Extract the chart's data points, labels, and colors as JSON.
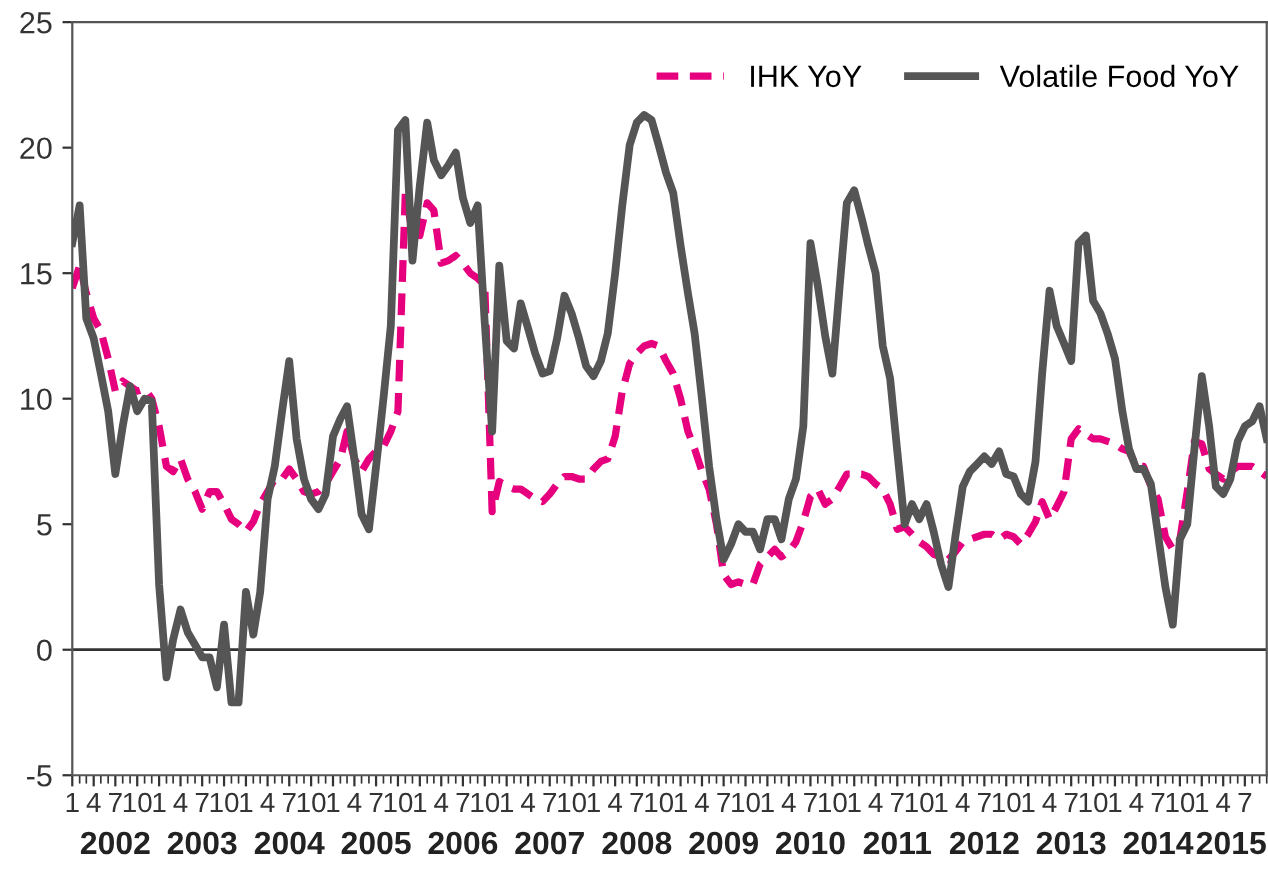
{
  "chart_data": {
    "type": "line",
    "x": [
      "2002-01",
      "2002-02",
      "2002-03",
      "2002-04",
      "2002-05",
      "2002-06",
      "2002-07",
      "2002-08",
      "2002-09",
      "2002-10",
      "2002-11",
      "2002-12",
      "2003-01",
      "2003-02",
      "2003-03",
      "2003-04",
      "2003-05",
      "2003-06",
      "2003-07",
      "2003-08",
      "2003-09",
      "2003-10",
      "2003-11",
      "2003-12",
      "2004-01",
      "2004-02",
      "2004-03",
      "2004-04",
      "2004-05",
      "2004-06",
      "2004-07",
      "2004-08",
      "2004-09",
      "2004-10",
      "2004-11",
      "2004-12",
      "2005-01",
      "2005-02",
      "2005-03",
      "2005-04",
      "2005-05",
      "2005-06",
      "2005-07",
      "2005-08",
      "2005-09",
      "2005-10",
      "2005-11",
      "2005-12",
      "2006-01",
      "2006-02",
      "2006-03",
      "2006-04",
      "2006-05",
      "2006-06",
      "2006-07",
      "2006-08",
      "2006-09",
      "2006-10",
      "2006-11",
      "2006-12",
      "2007-01",
      "2007-02",
      "2007-03",
      "2007-04",
      "2007-05",
      "2007-06",
      "2007-07",
      "2007-08",
      "2007-09",
      "2007-10",
      "2007-11",
      "2007-12",
      "2008-01",
      "2008-02",
      "2008-03",
      "2008-04",
      "2008-05",
      "2008-06",
      "2008-07",
      "2008-08",
      "2008-09",
      "2008-10",
      "2008-11",
      "2008-12",
      "2009-01",
      "2009-02",
      "2009-03",
      "2009-04",
      "2009-05",
      "2009-06",
      "2009-07",
      "2009-08",
      "2009-09",
      "2009-10",
      "2009-11",
      "2009-12",
      "2010-01",
      "2010-02",
      "2010-03",
      "2010-04",
      "2010-05",
      "2010-06",
      "2010-07",
      "2010-08",
      "2010-09",
      "2010-10",
      "2010-11",
      "2010-12",
      "2011-01",
      "2011-02",
      "2011-03",
      "2011-04",
      "2011-05",
      "2011-06",
      "2011-07",
      "2011-08",
      "2011-09",
      "2011-10",
      "2011-11",
      "2011-12",
      "2012-01",
      "2012-02",
      "2012-03",
      "2012-04",
      "2012-05",
      "2012-06",
      "2012-07",
      "2012-08",
      "2012-09",
      "2012-10",
      "2012-11",
      "2012-12",
      "2013-01",
      "2013-02",
      "2013-03",
      "2013-04",
      "2013-05",
      "2013-06",
      "2013-07",
      "2013-08",
      "2013-09",
      "2013-10",
      "2013-11",
      "2013-12",
      "2014-01",
      "2014-02",
      "2014-03",
      "2014-04",
      "2014-05",
      "2014-06",
      "2014-07",
      "2014-08",
      "2014-09",
      "2014-10",
      "2014-11",
      "2014-12",
      "2015-01",
      "2015-02",
      "2015-03",
      "2015-04",
      "2015-05",
      "2015-06",
      "2015-07",
      "2015-08",
      "2015-09",
      "2015-10"
    ],
    "series": [
      {
        "name": "IHK YoY",
        "color": "#e6007e",
        "line_style": "dashed",
        "values": [
          14.4,
          15.3,
          14.2,
          13.2,
          12.7,
          11.6,
          10.3,
          10.7,
          10.5,
          10.3,
          10.4,
          10.0,
          8.9,
          7.3,
          7.1,
          7.6,
          6.8,
          6.3,
          5.6,
          6.3,
          6.3,
          5.8,
          5.2,
          5.0,
          4.7,
          5.1,
          5.8,
          6.3,
          6.8,
          6.8,
          7.2,
          6.8,
          6.3,
          6.2,
          6.3,
          6.6,
          7.1,
          7.6,
          8.7,
          7.6,
          7.1,
          7.6,
          7.9,
          8.1,
          8.7,
          9.5,
          18.2,
          16.6,
          16.5,
          17.8,
          17.5,
          15.4,
          15.5,
          15.7,
          15.4,
          15.0,
          14.8,
          14.5,
          5.5,
          6.7,
          6.5,
          6.4,
          6.4,
          6.2,
          6.0,
          5.9,
          6.2,
          6.6,
          6.9,
          6.9,
          6.8,
          6.8,
          7.2,
          7.5,
          7.6,
          8.5,
          10.3,
          11.4,
          11.8,
          12.1,
          12.2,
          12.1,
          11.5,
          11.0,
          10.0,
          8.7,
          8.0,
          7.1,
          6.4,
          5.0,
          3.0,
          2.6,
          2.7,
          2.6,
          2.6,
          3.4,
          3.7,
          4.0,
          3.7,
          3.9,
          4.3,
          5.1,
          6.1,
          6.4,
          5.8,
          6.0,
          6.5,
          7.0,
          7.0,
          7.0,
          6.9,
          6.6,
          6.4,
          5.8,
          4.8,
          4.9,
          4.6,
          4.3,
          4.1,
          3.8,
          3.7,
          3.6,
          3.9,
          4.3,
          4.4,
          4.5,
          4.6,
          4.6,
          4.4,
          4.6,
          4.5,
          4.2,
          4.6,
          5.1,
          5.9,
          5.2,
          5.7,
          6.3,
          8.4,
          8.8,
          8.6,
          8.4,
          8.4,
          8.3,
          8.2,
          8.0,
          7.9,
          7.3,
          7.3,
          6.5,
          6.0,
          4.5,
          4.0,
          4.4,
          6.3,
          8.3,
          8.2,
          7.2,
          7.0,
          6.8,
          7.1,
          7.3,
          7.3,
          7.3,
          7.1,
          6.9
        ]
      },
      {
        "name": "Volatile Food YoY",
        "color": "#555555",
        "line_style": "solid",
        "values": [
          16.2,
          17.7,
          13.2,
          12.4,
          11.0,
          9.5,
          7.0,
          8.9,
          10.5,
          9.5,
          10.0,
          9.9,
          2.6,
          -1.1,
          0.4,
          1.6,
          0.7,
          0.2,
          -0.3,
          -0.3,
          -1.5,
          1.0,
          -2.1,
          -2.1,
          2.3,
          0.6,
          2.3,
          6.0,
          7.3,
          9.5,
          11.5,
          8.4,
          6.8,
          6.0,
          5.6,
          6.2,
          8.5,
          9.2,
          9.7,
          7.6,
          5.4,
          4.8,
          7.3,
          10.0,
          12.9,
          20.7,
          21.1,
          15.5,
          18.5,
          21.0,
          19.5,
          18.9,
          19.3,
          19.8,
          18.0,
          17.0,
          17.7,
          13.0,
          8.7,
          15.3,
          12.3,
          12.0,
          13.8,
          12.8,
          11.8,
          11.0,
          11.1,
          12.4,
          14.1,
          13.4,
          12.4,
          11.3,
          10.9,
          11.5,
          12.6,
          15.0,
          17.7,
          20.1,
          21.0,
          21.3,
          21.1,
          20.1,
          19.0,
          18.2,
          16.1,
          14.2,
          12.6,
          10.0,
          7.3,
          5.2,
          3.6,
          4.2,
          5.0,
          4.7,
          4.7,
          4.0,
          5.2,
          5.2,
          4.4,
          6.0,
          6.8,
          8.9,
          16.2,
          14.5,
          12.5,
          11.0,
          14.5,
          17.8,
          18.3,
          17.2,
          16.1,
          15.0,
          12.1,
          10.8,
          7.9,
          5.0,
          5.8,
          5.2,
          5.8,
          4.7,
          3.4,
          2.5,
          4.5,
          6.5,
          7.1,
          7.4,
          7.7,
          7.4,
          7.9,
          7.0,
          6.9,
          6.2,
          5.9,
          7.5,
          11.0,
          14.3,
          12.9,
          12.2,
          11.5,
          16.2,
          16.5,
          13.9,
          13.4,
          12.6,
          11.6,
          9.5,
          8.0,
          7.2,
          7.2,
          6.6,
          4.6,
          2.5,
          1.0,
          4.4,
          5.0,
          8.0,
          10.9,
          8.9,
          6.5,
          6.2,
          6.8,
          8.3,
          8.9,
          9.1,
          9.7,
          8.4
        ]
      }
    ],
    "xlim": [
      "2002-01",
      "2015-10"
    ],
    "xticks": [
      {
        "value": "2002-01",
        "label": "1"
      },
      {
        "value": "2002-04",
        "label": "4"
      },
      {
        "value": "2002-07",
        "label": "7"
      },
      {
        "value": "2002-10",
        "label": "10"
      },
      {
        "value": "2003-01",
        "label": "1"
      },
      {
        "value": "2003-04",
        "label": "4"
      },
      {
        "value": "2003-07",
        "label": "7"
      },
      {
        "value": "2003-10",
        "label": "10"
      },
      {
        "value": "2004-01",
        "label": "1"
      },
      {
        "value": "2004-04",
        "label": "4"
      },
      {
        "value": "2004-07",
        "label": "7"
      },
      {
        "value": "2004-10",
        "label": "10"
      },
      {
        "value": "2005-01",
        "label": "1"
      },
      {
        "value": "2005-04",
        "label": "4"
      },
      {
        "value": "2005-07",
        "label": "7"
      },
      {
        "value": "2005-10",
        "label": "10"
      },
      {
        "value": "2006-01",
        "label": "1"
      },
      {
        "value": "2006-04",
        "label": "4"
      },
      {
        "value": "2006-07",
        "label": "7"
      },
      {
        "value": "2006-10",
        "label": "10"
      },
      {
        "value": "2007-01",
        "label": "1"
      },
      {
        "value": "2007-04",
        "label": "4"
      },
      {
        "value": "2007-07",
        "label": "7"
      },
      {
        "value": "2007-10",
        "label": "10"
      },
      {
        "value": "2008-01",
        "label": "1"
      },
      {
        "value": "2008-04",
        "label": "4"
      },
      {
        "value": "2008-07",
        "label": "7"
      },
      {
        "value": "2008-10",
        "label": "10"
      },
      {
        "value": "2009-01",
        "label": "1"
      },
      {
        "value": "2009-04",
        "label": "4"
      },
      {
        "value": "2009-07",
        "label": "7"
      },
      {
        "value": "2009-10",
        "label": "10"
      },
      {
        "value": "2010-01",
        "label": "1"
      },
      {
        "value": "2010-04",
        "label": "4"
      },
      {
        "value": "2010-07",
        "label": "7"
      },
      {
        "value": "2010-10",
        "label": "10"
      },
      {
        "value": "2011-01",
        "label": "1"
      },
      {
        "value": "2011-04",
        "label": "4"
      },
      {
        "value": "2011-07",
        "label": "7"
      },
      {
        "value": "2011-10",
        "label": "10"
      },
      {
        "value": "2012-01",
        "label": "1"
      },
      {
        "value": "2012-04",
        "label": "4"
      },
      {
        "value": "2012-07",
        "label": "7"
      },
      {
        "value": "2012-10",
        "label": "10"
      },
      {
        "value": "2013-01",
        "label": "1"
      },
      {
        "value": "2013-04",
        "label": "4"
      },
      {
        "value": "2013-07",
        "label": "7"
      },
      {
        "value": "2013-10",
        "label": "10"
      },
      {
        "value": "2014-01",
        "label": "1"
      },
      {
        "value": "2014-04",
        "label": "4"
      },
      {
        "value": "2014-07",
        "label": "7"
      },
      {
        "value": "2014-10",
        "label": "10"
      },
      {
        "value": "2015-01",
        "label": "1"
      },
      {
        "value": "2015-04",
        "label": "4"
      },
      {
        "value": "2015-07",
        "label": "7"
      }
    ],
    "ylim": [
      -5,
      25
    ],
    "yticks": [
      -5,
      0,
      5,
      10,
      15,
      20,
      25
    ],
    "annotations": [
      "2002",
      "2003",
      "2004",
      "2005",
      "2006",
      "2007",
      "2008",
      "2009",
      "2010",
      "2011",
      "2012",
      "2013",
      "2014",
      "2015"
    ],
    "ref_lines": [
      {
        "axis": "y",
        "value": 0,
        "color": "#333333"
      }
    ],
    "legend": "top right",
    "grid": false,
    "marker": "none"
  }
}
